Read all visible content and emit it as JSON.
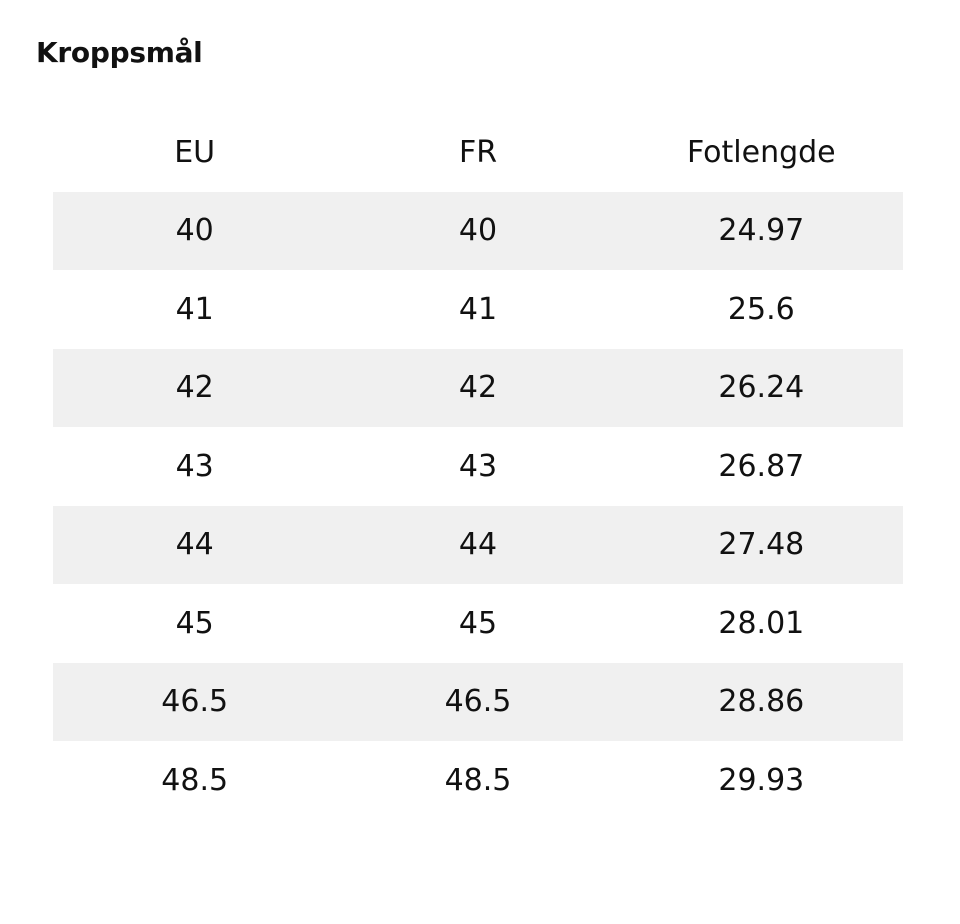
{
  "header": {
    "title": "Kroppsmål"
  },
  "table": {
    "columns": [
      "EU",
      "FR",
      "Fotlengde"
    ],
    "rows": [
      [
        "40",
        "40",
        "24.97"
      ],
      [
        "41",
        "41",
        "25.6"
      ],
      [
        "42",
        "42",
        "26.24"
      ],
      [
        "43",
        "43",
        "26.87"
      ],
      [
        "44",
        "44",
        "27.48"
      ],
      [
        "45",
        "45",
        "28.01"
      ],
      [
        "46.5",
        "46.5",
        "28.86"
      ],
      [
        "48.5",
        "48.5",
        "29.93"
      ]
    ]
  }
}
